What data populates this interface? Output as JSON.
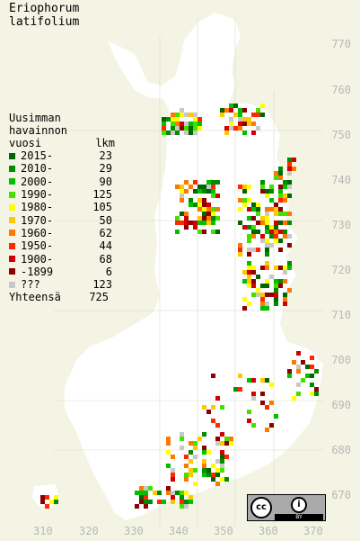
{
  "title": {
    "line1": "Eriophorum",
    "line2": "latifolium"
  },
  "legend": {
    "heading1": "Uusimman",
    "heading2": "havainnon",
    "heading3": "vuosi",
    "count_heading": "lkm",
    "rows": [
      {
        "label": "2015-",
        "count": "23",
        "color": "#006600"
      },
      {
        "label": "2010-",
        "count": "29",
        "color": "#008c00"
      },
      {
        "label": "2000-",
        "count": "90",
        "color": "#00c000"
      },
      {
        "label": "1990-",
        "count": "125",
        "color": "#44e000"
      },
      {
        "label": "1980-",
        "count": "105",
        "color": "#ffff00"
      },
      {
        "label": "1970-",
        "count": "50",
        "color": "#ffc800"
      },
      {
        "label": "1960-",
        "count": "62",
        "color": "#ff7800"
      },
      {
        "label": "1950-",
        "count": "44",
        "color": "#ff2800"
      },
      {
        "label": "1900-",
        "count": "68",
        "color": "#d20000"
      },
      {
        "label": "-1899",
        "count": "6",
        "color": "#8c0000"
      },
      {
        "label": "???",
        "count": "123",
        "color": "#c8c8c8"
      }
    ],
    "total_label": "Yhteensä",
    "total_count": "725"
  },
  "grid_y_labels": [
    "770",
    "760",
    "750",
    "740",
    "730",
    "720",
    "710",
    "700",
    "690",
    "680",
    "670"
  ],
  "grid_x_labels": [
    "310",
    "320",
    "330",
    "340",
    "350",
    "360",
    "370"
  ],
  "license": {
    "cc": "cc",
    "by": "BY",
    "person": "i"
  }
}
